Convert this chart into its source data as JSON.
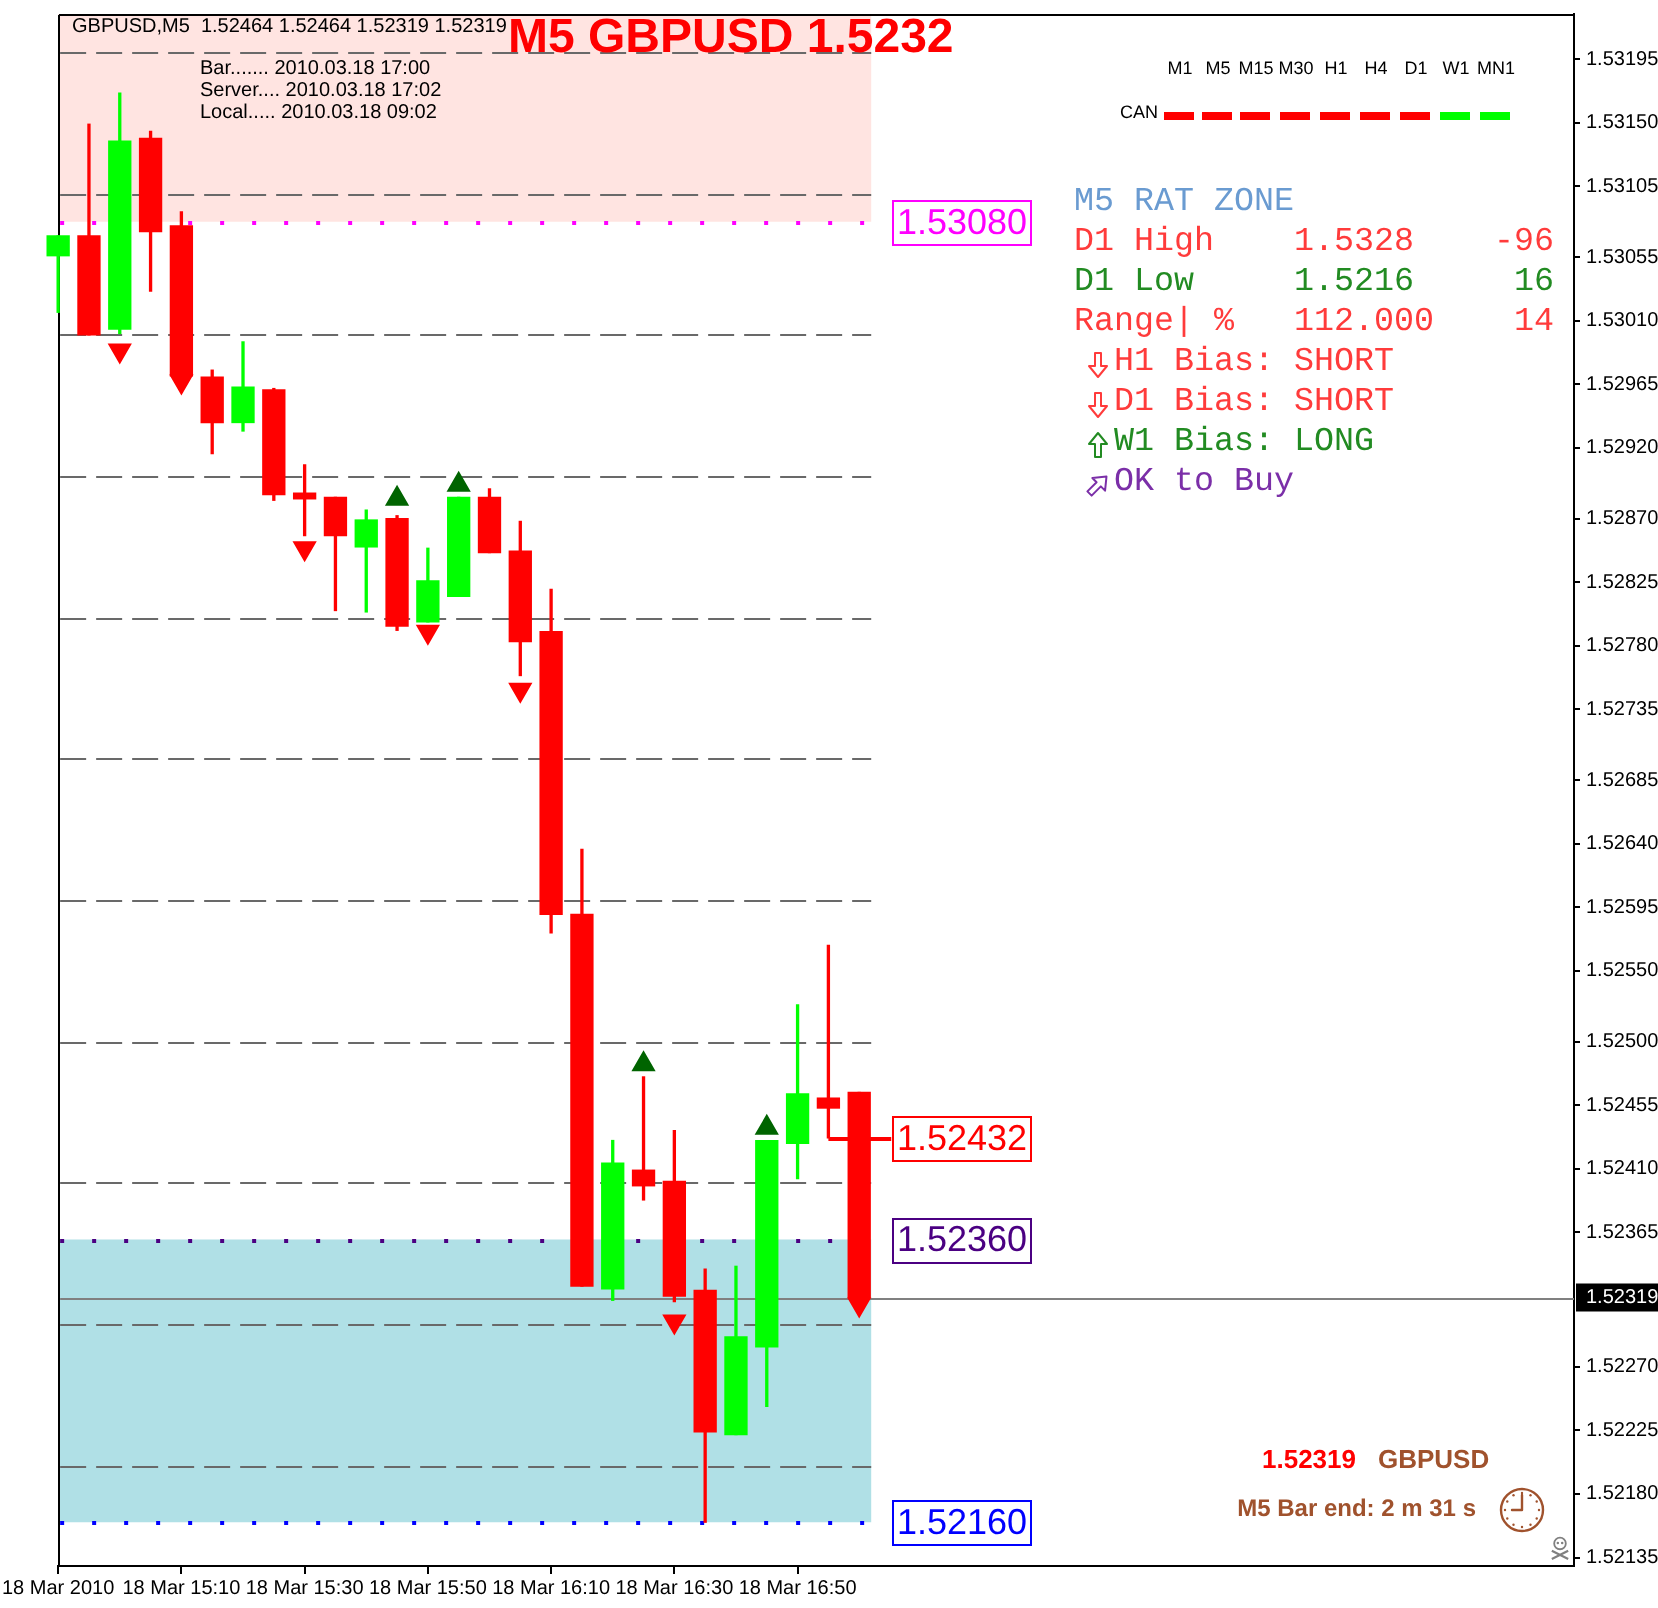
{
  "chart_data": {
    "type": "candlestick",
    "title": "M5 GBPUSD 1.5232",
    "x": [
      "2010-03-18T14:50",
      "2010-03-18T14:55",
      "2010-03-18T15:00",
      "2010-03-18T15:05",
      "2010-03-18T15:10",
      "2010-03-18T15:15",
      "2010-03-18T15:20",
      "2010-03-18T15:25",
      "2010-03-18T15:30",
      "2010-03-18T15:35",
      "2010-03-18T15:40",
      "2010-03-18T15:45",
      "2010-03-18T15:50",
      "2010-03-18T15:55",
      "2010-03-18T16:00",
      "2010-03-18T16:05",
      "2010-03-18T16:10",
      "2010-03-18T16:15",
      "2010-03-18T16:20",
      "2010-03-18T16:25",
      "2010-03-18T16:30",
      "2010-03-18T16:35",
      "2010-03-18T16:40",
      "2010-03-18T16:45",
      "2010-03-18T16:50",
      "2010-03-18T16:55",
      "2010-03-18T17:00"
    ],
    "ohlc": [
      [
        1.53056,
        1.5307,
        1.53016,
        1.5307
      ],
      [
        1.5307,
        1.53149,
        1.53,
        1.53
      ],
      [
        1.53004,
        1.53171,
        1.53001,
        1.53137
      ],
      [
        1.53139,
        1.53144,
        1.53031,
        1.53073
      ],
      [
        1.53077,
        1.53087,
        1.52971,
        1.52971
      ],
      [
        1.5297,
        1.52975,
        1.52916,
        1.52938
      ],
      [
        1.52938,
        1.52995,
        1.52932,
        1.52963
      ],
      [
        1.52961,
        1.52962,
        1.52883,
        1.52887
      ],
      [
        1.52888,
        1.52908,
        1.52858,
        1.52884
      ],
      [
        1.52885,
        1.52885,
        1.52805,
        1.52858
      ],
      [
        1.5285,
        1.52876,
        1.52804,
        1.52869
      ],
      [
        1.5287,
        1.52872,
        1.52791,
        1.52794
      ],
      [
        1.52797,
        1.52849,
        1.52797,
        1.52826
      ],
      [
        1.52815,
        1.52885,
        1.52815,
        1.52885
      ],
      [
        1.52885,
        1.52891,
        1.52846,
        1.52846
      ],
      [
        1.52847,
        1.52868,
        1.52759,
        1.52783
      ],
      [
        1.5279,
        1.5282,
        1.52577,
        1.5259
      ],
      [
        1.5259,
        1.52636,
        1.52327,
        1.52327
      ],
      [
        1.52325,
        1.5243,
        1.52317,
        1.52414
      ],
      [
        1.52409,
        1.52475,
        1.52388,
        1.52398
      ],
      [
        1.52401,
        1.52437,
        1.52316,
        1.5232
      ],
      [
        1.52324,
        1.52339,
        1.5216,
        1.52224
      ],
      [
        1.52222,
        1.52341,
        1.52222,
        1.52291
      ],
      [
        1.52284,
        1.5243,
        1.52242,
        1.5243
      ],
      [
        1.52428,
        1.52526,
        1.52403,
        1.52463
      ],
      [
        1.5246,
        1.52568,
        1.52432,
        1.52453
      ],
      [
        1.52464,
        1.52464,
        1.52319,
        1.52319
      ]
    ],
    "colors": [
      "#00ff00",
      "#ff0000",
      "#00ff00",
      "#ff0000",
      "#ff0000",
      "#ff0000",
      "#00ff00",
      "#ff0000",
      "#ff0000",
      "#ff0000",
      "#00ff00",
      "#ff0000",
      "#00ff00",
      "#00ff00",
      "#ff0000",
      "#ff0000",
      "#ff0000",
      "#ff0000",
      "#00ff00",
      "#ff0000",
      "#ff0000",
      "#ff0000",
      "#00ff00",
      "#00ff00",
      "#00ff00",
      "#ff0000",
      "#ff0000"
    ],
    "series": [
      {
        "type": "scatter",
        "color": "#ff0000",
        "x": [
          "2010-03-18T15:00",
          "2010-03-18T15:10",
          "2010-03-18T15:30",
          "2010-03-18T15:50",
          "2010-03-18T16:05",
          "2010-03-18T16:30",
          "2010-03-18T17:00"
        ],
        "values": [
          1.52989,
          1.52967,
          1.52849,
          1.5279,
          1.52749,
          1.52302,
          1.52314
        ]
      },
      {
        "type": "scatter",
        "color": "#006400",
        "x": [
          "2010-03-18T15:45",
          "2010-03-18T15:55",
          "2010-03-18T16:25",
          "2010-03-18T16:45"
        ],
        "values": [
          1.52884,
          1.52894,
          1.52484,
          1.52439
        ]
      }
    ],
    "marker": "triangle",
    "xlim": [
      "2010-03-18T14:50",
      "2010-03-18T18:56"
    ],
    "xticks": [
      {
        "value": "2010-03-18T14:50",
        "label": "18 Mar 2010"
      },
      {
        "value": "2010-03-18T15:10",
        "label": "18 Mar 15:10"
      },
      {
        "value": "2010-03-18T15:30",
        "label": "18 Mar 15:30"
      },
      {
        "value": "2010-03-18T15:50",
        "label": "18 Mar 15:50"
      },
      {
        "value": "2010-03-18T16:10",
        "label": "18 Mar 16:10"
      },
      {
        "value": "2010-03-18T16:30",
        "label": "18 Mar 16:30"
      },
      {
        "value": "2010-03-18T16:50",
        "label": "18 Mar 16:50"
      }
    ],
    "ylim": [
      1.52129,
      1.53227
    ],
    "yticks": [
      1.53195,
      {
        "value": 1.5315,
        "label": "1.53150"
      },
      1.53105,
      1.53055,
      {
        "value": 1.5301,
        "label": "1.53010"
      },
      1.52965,
      {
        "value": 1.5292,
        "label": "1.52920"
      },
      {
        "value": 1.5287,
        "label": "1.52870"
      },
      1.52825,
      {
        "value": 1.5278,
        "label": "1.52780"
      },
      1.52735,
      1.52685,
      {
        "value": 1.5264,
        "label": "1.52640"
      },
      1.52595,
      {
        "value": 1.5255,
        "label": "1.52550"
      },
      {
        "value": 1.525,
        "label": "1.52500"
      },
      1.52455,
      {
        "value": 1.5241,
        "label": "1.52410"
      },
      1.52365,
      {
        "value": 1.5227,
        "label": "1.52270"
      },
      1.52225,
      {
        "value": 1.5218,
        "label": "1.52180"
      },
      1.52135
    ],
    "ref_lines": [
      {
        "axis": "y",
        "value": 1.532,
        "color": "#696969",
        "line_style": "dashed"
      },
      {
        "axis": "y",
        "value": 1.531,
        "color": "#696969",
        "line_style": "dashed"
      },
      {
        "axis": "y",
        "value": 1.53,
        "color": "#696969",
        "line_style": "dashed"
      },
      {
        "axis": "y",
        "value": 1.529,
        "color": "#696969",
        "line_style": "dashed"
      },
      {
        "axis": "y",
        "value": 1.528,
        "color": "#696969",
        "line_style": "dashed"
      },
      {
        "axis": "y",
        "value": 1.527,
        "color": "#696969",
        "line_style": "dashed"
      },
      {
        "axis": "y",
        "value": 1.526,
        "color": "#696969",
        "line_style": "dashed"
      },
      {
        "axis": "y",
        "value": 1.525,
        "color": "#696969",
        "line_style": "dashed"
      },
      {
        "axis": "y",
        "value": 1.524,
        "color": "#696969",
        "line_style": "dashed"
      },
      {
        "axis": "y",
        "value": 1.523,
        "color": "#696969",
        "line_style": "dashed"
      },
      {
        "axis": "y",
        "value": 1.522,
        "color": "#696969",
        "line_style": "dashed"
      },
      {
        "axis": "y",
        "value": 1.5308,
        "label": "1.53080",
        "color": "#ff00ff",
        "line_style": "dotted"
      },
      {
        "axis": "y",
        "value": 1.5236,
        "label": "1.52360",
        "color": "#4b0082",
        "line_style": "dotted"
      },
      {
        "axis": "y",
        "value": 1.5216,
        "label": "1.52160",
        "color": "#0000ff",
        "line_style": "dotted"
      },
      {
        "axis": "y",
        "value": 1.52432,
        "label": "1.52432",
        "color": "#ff0000",
        "line_style": "solid"
      },
      {
        "axis": "y",
        "value": 1.52319,
        "label": "1.52319",
        "color": "#808080",
        "line_style": "solid"
      }
    ],
    "bands": [
      {
        "axis": "y",
        "from": 1.5308,
        "to": 1.53227,
        "color": "#ffe4e1"
      },
      {
        "axis": "y",
        "from": 1.5216,
        "to": 1.5236,
        "color": "#b0e0e6"
      }
    ],
    "annotations": [
      "GBPUSD,M5  1.52464 1.52464 1.52319 1.52319",
      "Bar....... 2010.03.18 17:00",
      "Server.... 2010.03.18 17:02",
      "Local..... 2010.03.18 09:02",
      "M1",
      "M5",
      "M15",
      "M30",
      "H1",
      "H4",
      "D1",
      "W1",
      "MN1",
      "CAN",
      "M5 RAT ZONE",
      "D1 High",
      "1.5328",
      "-96",
      "D1 Low",
      "1.5216",
      "16",
      "Range| %",
      "112.000",
      "14",
      "H1 Bias: SHORT",
      "D1 Bias: SHORT",
      "W1 Bias: LONG",
      "OK to Buy",
      "1.52319",
      "GBPUSD",
      "M5 Bar end: 2 m 31 s"
    ],
    "grid": false,
    "legend": false
  }
}
